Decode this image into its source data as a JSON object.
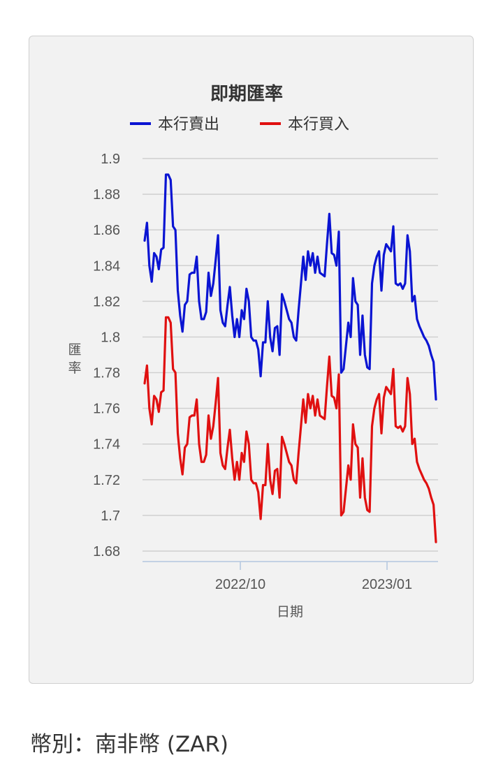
{
  "chart_data": {
    "type": "line",
    "title": "即期匯率",
    "xlabel": "日期",
    "ylabel": "匯率",
    "ylim": [
      1.68,
      1.9
    ],
    "yticks": [
      "1.9",
      "1.88",
      "1.86",
      "1.84",
      "1.82",
      "1.8",
      "1.78",
      "1.76",
      "1.74",
      "1.72",
      "1.7",
      "1.68"
    ],
    "xticks": [
      "2022/10",
      "2023/01"
    ],
    "grid": true,
    "legend": "top",
    "series": [
      {
        "name": "本行賣出",
        "color": "#0a14d2",
        "values": [
          1.854,
          1.864,
          1.84,
          1.831,
          1.847,
          1.845,
          1.838,
          1.849,
          1.85,
          1.891,
          1.891,
          1.888,
          1.862,
          1.86,
          1.826,
          1.812,
          1.803,
          1.818,
          1.82,
          1.835,
          1.836,
          1.836,
          1.845,
          1.82,
          1.81,
          1.81,
          1.814,
          1.836,
          1.823,
          1.83,
          1.843,
          1.857,
          1.815,
          1.808,
          1.806,
          1.818,
          1.828,
          1.812,
          1.8,
          1.81,
          1.8,
          1.815,
          1.81,
          1.827,
          1.82,
          1.8,
          1.798,
          1.798,
          1.793,
          1.778,
          1.797,
          1.797,
          1.82,
          1.8,
          1.792,
          1.805,
          1.806,
          1.79,
          1.824,
          1.82,
          1.815,
          1.81,
          1.808,
          1.8,
          1.798,
          1.815,
          1.83,
          1.845,
          1.832,
          1.848,
          1.84,
          1.847,
          1.836,
          1.845,
          1.836,
          1.835,
          1.834,
          1.852,
          1.869,
          1.847,
          1.846,
          1.84,
          1.859,
          1.78,
          1.782,
          1.795,
          1.808,
          1.8,
          1.833,
          1.82,
          1.818,
          1.79,
          1.812,
          1.79,
          1.783,
          1.782,
          1.83,
          1.84,
          1.845,
          1.848,
          1.826,
          1.846,
          1.852,
          1.85,
          1.848,
          1.862,
          1.83,
          1.829,
          1.83,
          1.827,
          1.83,
          1.857,
          1.848,
          1.82,
          1.823,
          1.81,
          1.806,
          1.803,
          1.8,
          1.798,
          1.795,
          1.79,
          1.786,
          1.765
        ]
      },
      {
        "name": "本行買入",
        "color": "#e01010",
        "values": [
          1.774,
          1.784,
          1.76,
          1.751,
          1.767,
          1.765,
          1.758,
          1.769,
          1.77,
          1.811,
          1.811,
          1.808,
          1.782,
          1.78,
          1.746,
          1.732,
          1.723,
          1.738,
          1.74,
          1.755,
          1.756,
          1.756,
          1.765,
          1.74,
          1.73,
          1.73,
          1.734,
          1.756,
          1.743,
          1.75,
          1.763,
          1.777,
          1.735,
          1.728,
          1.726,
          1.738,
          1.748,
          1.732,
          1.72,
          1.73,
          1.72,
          1.735,
          1.73,
          1.747,
          1.74,
          1.72,
          1.718,
          1.718,
          1.713,
          1.698,
          1.717,
          1.717,
          1.74,
          1.72,
          1.712,
          1.725,
          1.726,
          1.71,
          1.744,
          1.74,
          1.735,
          1.73,
          1.728,
          1.72,
          1.718,
          1.735,
          1.75,
          1.765,
          1.752,
          1.768,
          1.76,
          1.767,
          1.756,
          1.765,
          1.756,
          1.755,
          1.754,
          1.772,
          1.789,
          1.767,
          1.766,
          1.76,
          1.779,
          1.7,
          1.702,
          1.715,
          1.728,
          1.72,
          1.751,
          1.74,
          1.738,
          1.71,
          1.732,
          1.71,
          1.703,
          1.702,
          1.75,
          1.76,
          1.765,
          1.768,
          1.746,
          1.766,
          1.772,
          1.77,
          1.768,
          1.782,
          1.75,
          1.749,
          1.75,
          1.747,
          1.75,
          1.777,
          1.768,
          1.74,
          1.743,
          1.73,
          1.726,
          1.723,
          1.72,
          1.718,
          1.715,
          1.71,
          1.706,
          1.685
        ]
      }
    ]
  },
  "footer": {
    "currency_label": "幣別：南非幣 (ZAR)"
  }
}
